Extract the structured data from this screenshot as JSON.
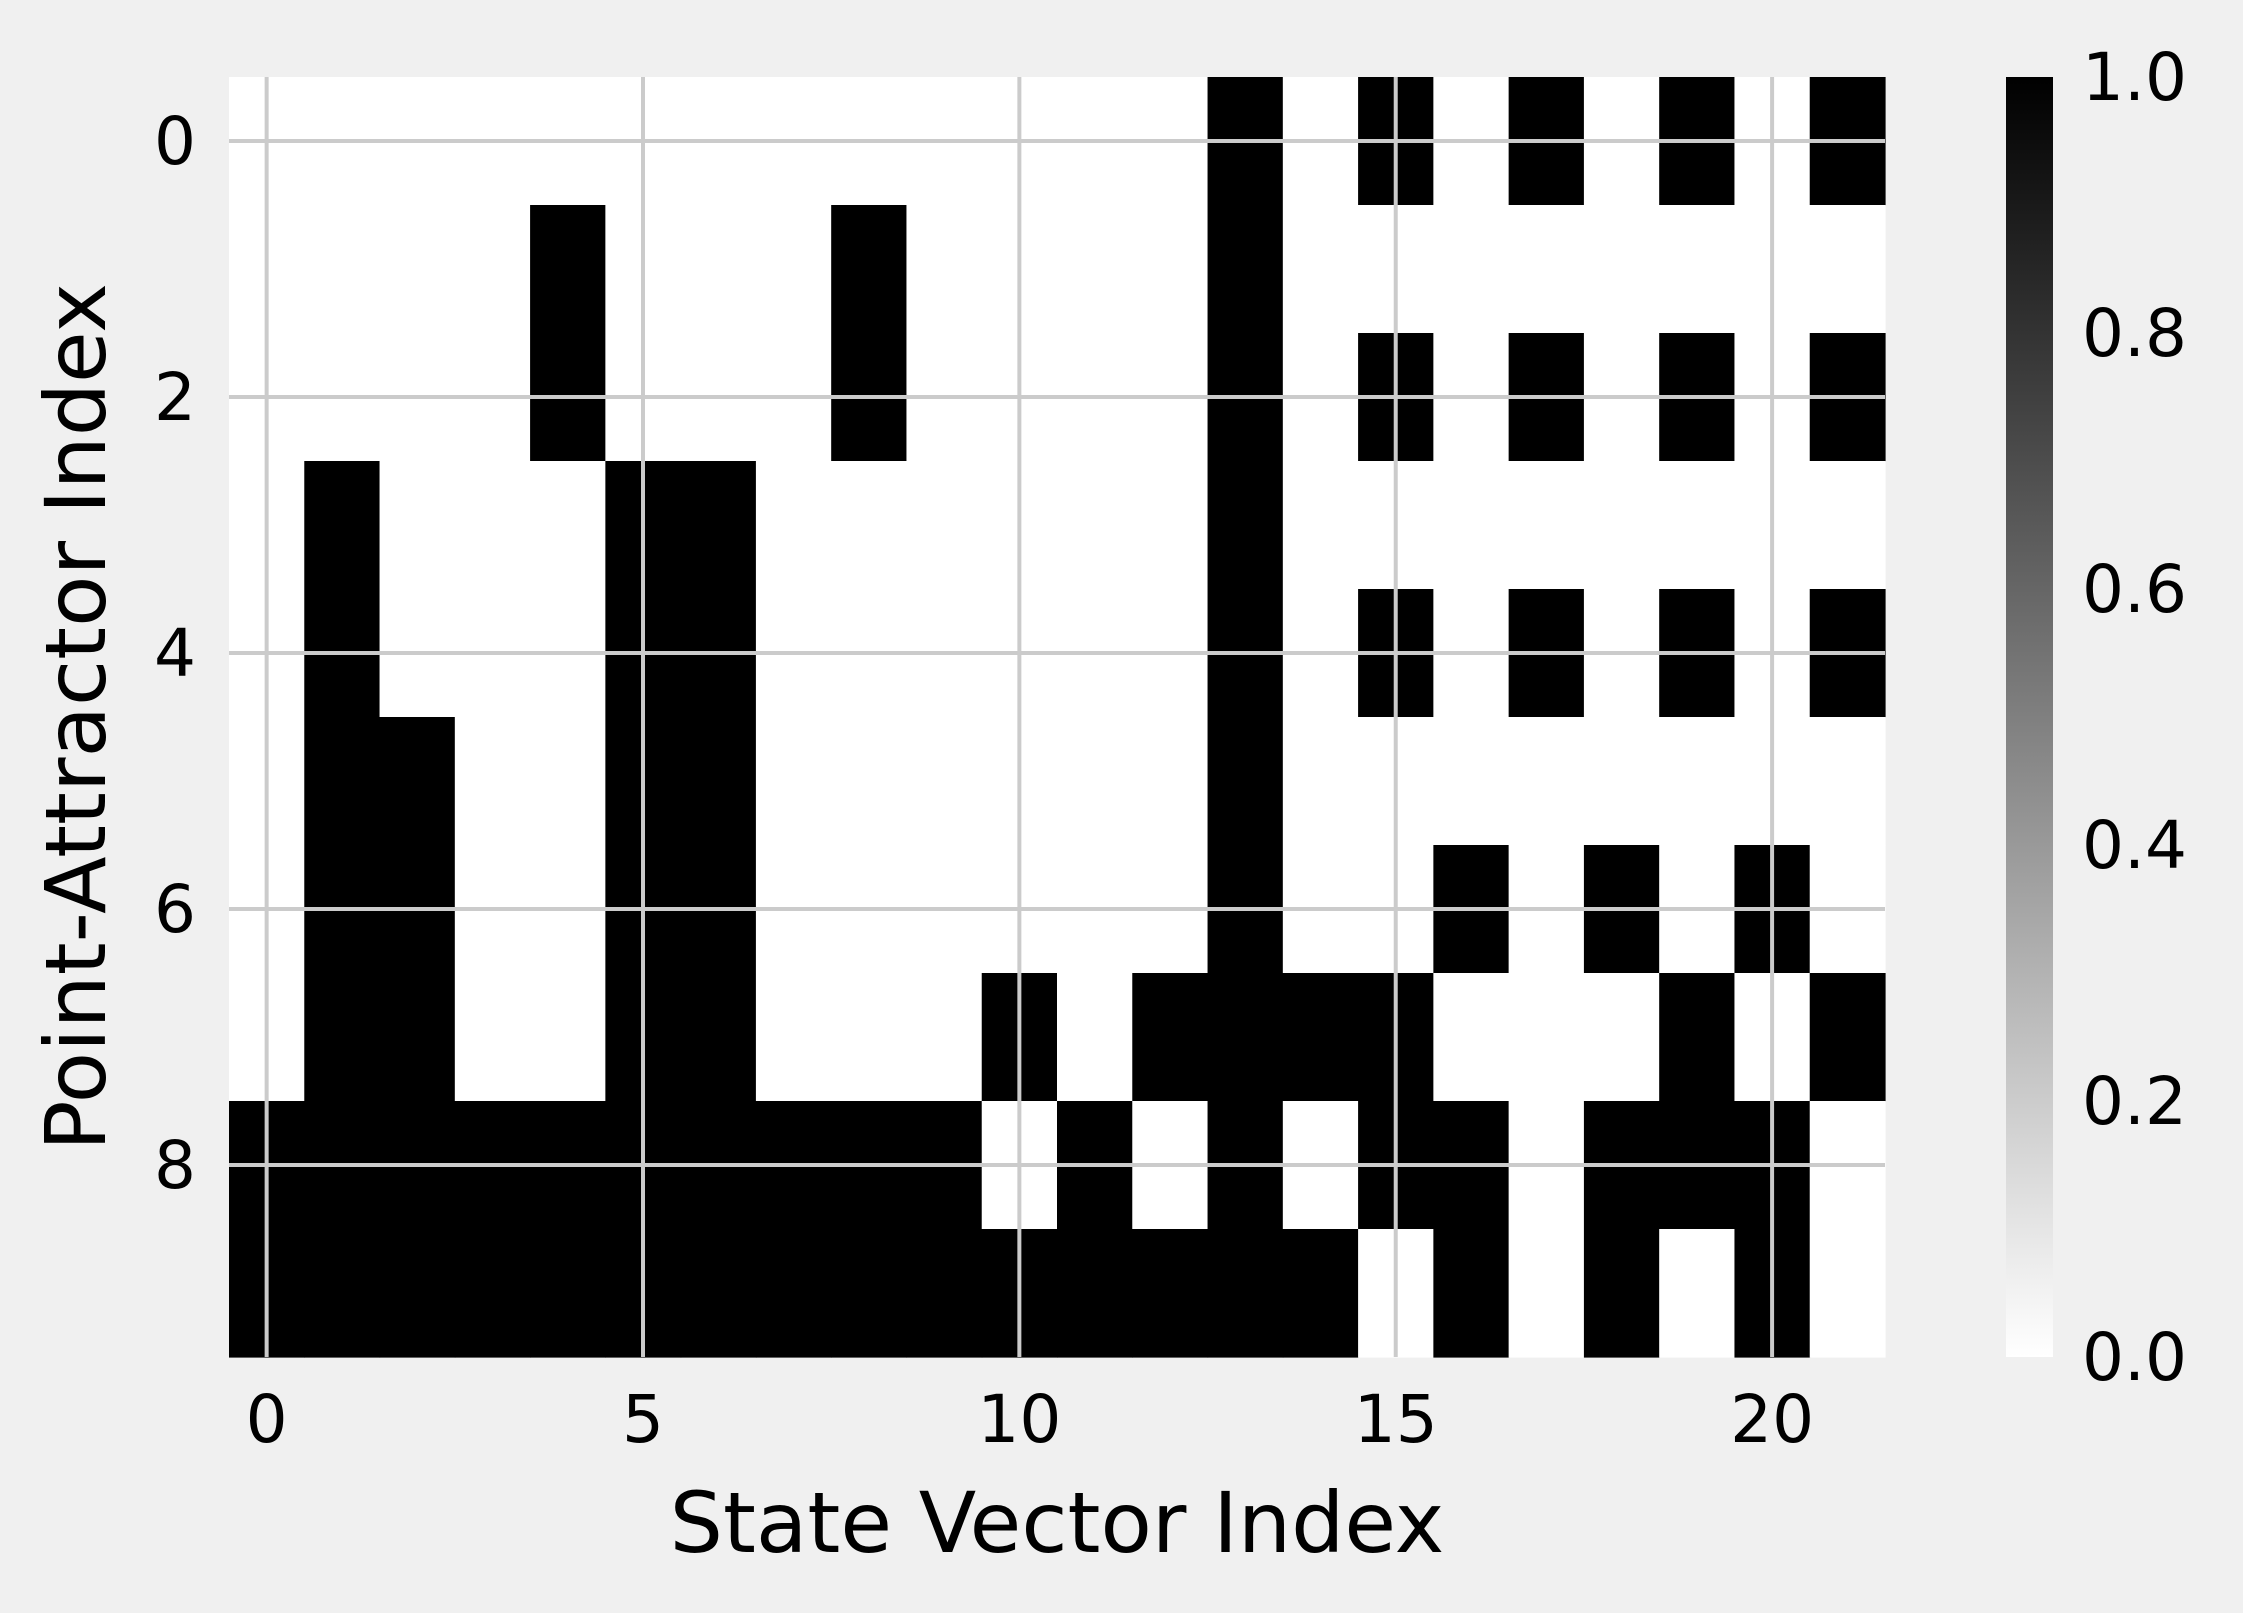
{
  "chart_data": {
    "type": "heatmap",
    "title": "",
    "xlabel": "State Vector Index",
    "ylabel": "Point-Attractor Index",
    "x_ticks": [
      "0",
      "5",
      "10",
      "15",
      "20"
    ],
    "x_tick_values": [
      0,
      5,
      10,
      15,
      20
    ],
    "y_ticks": [
      "0",
      "2",
      "4",
      "6",
      "8"
    ],
    "y_tick_values": [
      0,
      2,
      4,
      6,
      8
    ],
    "xlim": [
      -0.5,
      21.5
    ],
    "ylim": [
      9.5,
      -0.5
    ],
    "grid": true,
    "colormap": "gray_r",
    "colorbar": {
      "ticks": [
        "0.0",
        "0.2",
        "0.4",
        "0.6",
        "0.8",
        "1.0"
      ],
      "tick_values": [
        0.0,
        0.2,
        0.4,
        0.6,
        0.8,
        1.0
      ],
      "range": [
        0.0,
        1.0
      ]
    },
    "colors": {
      "low": "#ffffff",
      "high": "#000000",
      "grid": "#cbcbcb",
      "background": "#f0f0f0"
    },
    "rows": 10,
    "cols": 22,
    "values": [
      [
        0,
        0,
        0,
        0,
        0,
        0,
        0,
        0,
        0,
        0,
        0,
        0,
        0,
        1,
        0,
        1,
        0,
        1,
        0,
        1,
        0,
        1
      ],
      [
        0,
        0,
        0,
        0,
        1,
        0,
        0,
        0,
        1,
        0,
        0,
        0,
        0,
        1,
        0,
        0,
        0,
        0,
        0,
        0,
        0,
        0
      ],
      [
        0,
        0,
        0,
        0,
        1,
        0,
        0,
        0,
        1,
        0,
        0,
        0,
        0,
        1,
        0,
        1,
        0,
        1,
        0,
        1,
        0,
        1
      ],
      [
        0,
        1,
        0,
        0,
        0,
        1,
        1,
        0,
        0,
        0,
        0,
        0,
        0,
        1,
        0,
        0,
        0,
        0,
        0,
        0,
        0,
        0
      ],
      [
        0,
        1,
        0,
        0,
        0,
        1,
        1,
        0,
        0,
        0,
        0,
        0,
        0,
        1,
        0,
        1,
        0,
        1,
        0,
        1,
        0,
        1
      ],
      [
        0,
        1,
        1,
        0,
        0,
        1,
        1,
        0,
        0,
        0,
        0,
        0,
        0,
        1,
        0,
        0,
        0,
        0,
        0,
        0,
        0,
        0
      ],
      [
        0,
        1,
        1,
        0,
        0,
        1,
        1,
        0,
        0,
        0,
        0,
        0,
        0,
        1,
        0,
        0,
        1,
        0,
        1,
        0,
        1,
        0
      ],
      [
        0,
        1,
        1,
        0,
        0,
        1,
        1,
        0,
        0,
        0,
        1,
        0,
        1,
        1,
        1,
        1,
        0,
        0,
        0,
        1,
        0,
        1
      ],
      [
        1,
        1,
        1,
        1,
        1,
        1,
        1,
        1,
        1,
        1,
        0,
        1,
        0,
        1,
        0,
        1,
        1,
        0,
        1,
        1,
        1,
        0
      ],
      [
        1,
        1,
        1,
        1,
        1,
        1,
        1,
        1,
        1,
        1,
        1,
        1,
        1,
        1,
        1,
        0,
        1,
        0,
        1,
        0,
        1,
        0
      ]
    ]
  }
}
